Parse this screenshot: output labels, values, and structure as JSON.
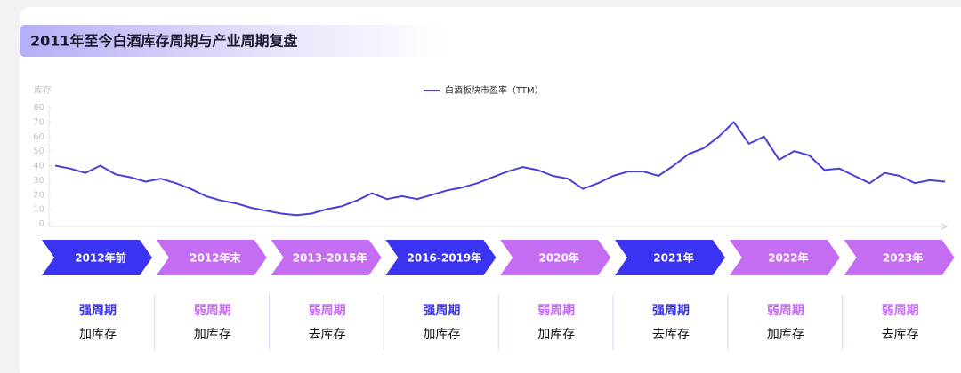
{
  "chart_data": {
    "type": "line",
    "title": "2011年至今白酒库存周期与产业周期复盘",
    "ylabel": "库存",
    "categories": [
      null,
      null,
      null,
      null,
      null,
      null,
      null,
      null,
      null,
      null,
      null,
      null,
      null,
      null,
      null,
      null,
      null,
      null,
      null,
      null,
      null,
      null,
      null,
      null,
      null,
      null,
      null,
      null,
      null,
      null,
      null,
      null,
      null,
      null,
      null,
      null,
      null,
      null,
      null,
      null,
      null,
      null,
      null,
      null,
      null,
      null,
      null,
      null,
      null,
      null,
      null,
      null,
      null,
      null,
      null,
      null,
      null,
      null,
      null,
      null
    ],
    "series": [
      {
        "name": "白酒板块市盈率（TTM）",
        "color": "#4b3fd6",
        "values": [
          40,
          38,
          35,
          40,
          34,
          32,
          29,
          31,
          28,
          24,
          19,
          16,
          14,
          11,
          9,
          7,
          6,
          7,
          10,
          12,
          16,
          21,
          17,
          19,
          17,
          20,
          23,
          25,
          28,
          32,
          36,
          39,
          37,
          33,
          31,
          24,
          28,
          33,
          36,
          36,
          33,
          40,
          48,
          52,
          60,
          70,
          55,
          60,
          44,
          50,
          47,
          37,
          38,
          33,
          28,
          35,
          33,
          28,
          30,
          29
        ]
      }
    ],
    "ylim": [
      0,
      80
    ],
    "yticks": [
      0,
      10,
      20,
      30,
      40,
      50,
      60,
      70,
      80
    ],
    "legend": "top"
  },
  "timeline": [
    {
      "period": "2012年前",
      "cycle": "强周期",
      "inventory": "加库存",
      "color": "#3a34f2"
    },
    {
      "period": "2012年末",
      "cycle": "弱周期",
      "inventory": "加库存",
      "color": "#c46cf2"
    },
    {
      "period": "2013-2015年",
      "cycle": "弱周期",
      "inventory": "去库存",
      "color": "#c46cf2"
    },
    {
      "period": "2016-2019年",
      "cycle": "强周期",
      "inventory": "加库存",
      "color": "#3a34f2"
    },
    {
      "period": "2020年",
      "cycle": "弱周期",
      "inventory": "加库存",
      "color": "#c46cf2"
    },
    {
      "period": "2021年",
      "cycle": "强周期",
      "inventory": "去库存",
      "color": "#3a34f2"
    },
    {
      "period": "2022年",
      "cycle": "弱周期",
      "inventory": "加库存",
      "color": "#c46cf2"
    },
    {
      "period": "2023年",
      "cycle": "弱周期",
      "inventory": "去库存",
      "color": "#c46cf2"
    }
  ]
}
